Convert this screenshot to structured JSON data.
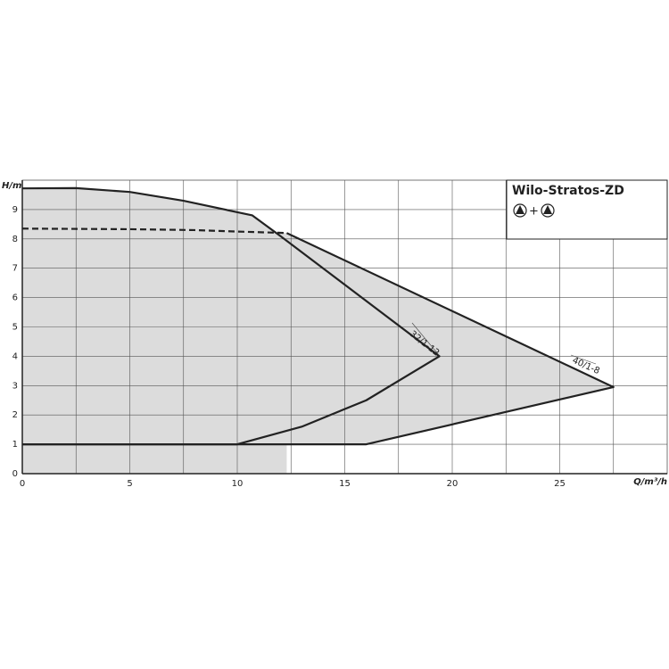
{
  "chart_data": {
    "type": "line",
    "title": "Wilo-Stratos-ZD",
    "legend_symbol": "+",
    "xlabel": "Q/m³/h",
    "ylabel": "H/m",
    "xlim": [
      0,
      30
    ],
    "ylim": [
      0,
      10
    ],
    "xticks": [
      0,
      5,
      10,
      15,
      20,
      25
    ],
    "x_minor_ticks": [
      2.5,
      7.5,
      12.5,
      17.5,
      22.5,
      27.5
    ],
    "yticks": [
      0,
      1,
      2,
      3,
      4,
      5,
      6,
      7,
      8,
      9
    ],
    "grid": true,
    "fill": "#dcdcdc",
    "color": "#222222",
    "series": [
      {
        "name": "32/1-12",
        "style": "solid",
        "x": [
          0,
          2.5,
          5,
          7.5,
          10.7,
          12,
          19.4,
          16,
          13,
          10,
          0
        ],
        "values": [
          9.72,
          9.73,
          9.6,
          9.3,
          8.8,
          8.1,
          4.0,
          2.5,
          1.6,
          1,
          1
        ]
      },
      {
        "style": "dashed",
        "x": [
          0,
          5,
          8,
          10,
          12.3
        ],
        "values": [
          8.35,
          8.33,
          8.3,
          8.25,
          8.2
        ]
      },
      {
        "name": "40/1-8",
        "style": "solid",
        "x": [
          12.3,
          27.5,
          16,
          0
        ],
        "values": [
          8.2,
          2.95,
          1,
          1
        ]
      }
    ]
  }
}
